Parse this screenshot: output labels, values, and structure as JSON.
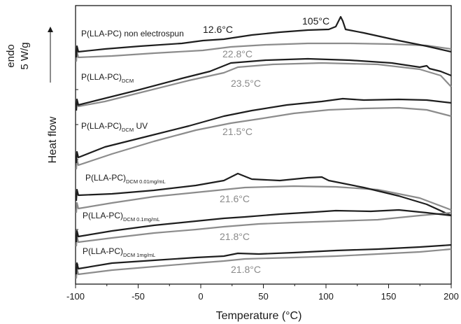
{
  "chart_data": {
    "type": "line",
    "xlabel": "Temperature (°C)",
    "ylabel": "Heat flow",
    "xlim": [
      -100,
      200
    ],
    "x_ticks": [
      -100,
      -50,
      0,
      50,
      100,
      150,
      200
    ],
    "scale_bar": {
      "direction": "endo",
      "value": "5 W/g"
    },
    "series": [
      {
        "base": "P(LLA-PC)",
        "suffix": " non electrospun",
        "subscript": "",
        "dark_tg": "12.6°C",
        "gray_tg": "22.8°C",
        "peak": "105°C"
      },
      {
        "base": "P(LLA-PC)",
        "suffix": "",
        "subscript": "DCM",
        "dark_tg": "",
        "gray_tg": "23.5°C",
        "peak": ""
      },
      {
        "base": "P(LLA-PC)",
        "suffix": " UV",
        "subscript": "DCM",
        "dark_tg": "",
        "gray_tg": "21.5°C",
        "peak": ""
      },
      {
        "base": "P(LLA-PC)",
        "suffix": "",
        "subscript": "DCM 0.01mg/mL",
        "dark_tg": "",
        "gray_tg": "21.6°C",
        "peak": ""
      },
      {
        "base": "P(LLA-PC)",
        "suffix": "",
        "subscript": "DCM 0.1mg/mL",
        "dark_tg": "",
        "gray_tg": "21.8°C",
        "peak": ""
      },
      {
        "base": "P(LLA-PC)",
        "suffix": "",
        "subscript": "DCM 1mg/mL",
        "dark_tg": "",
        "gray_tg": "21.8°C",
        "peak": ""
      }
    ]
  },
  "colors": {
    "first_heating": "#1e1e1e",
    "second_heating": "#8c8c8c",
    "axis": "#1a1a1a"
  }
}
